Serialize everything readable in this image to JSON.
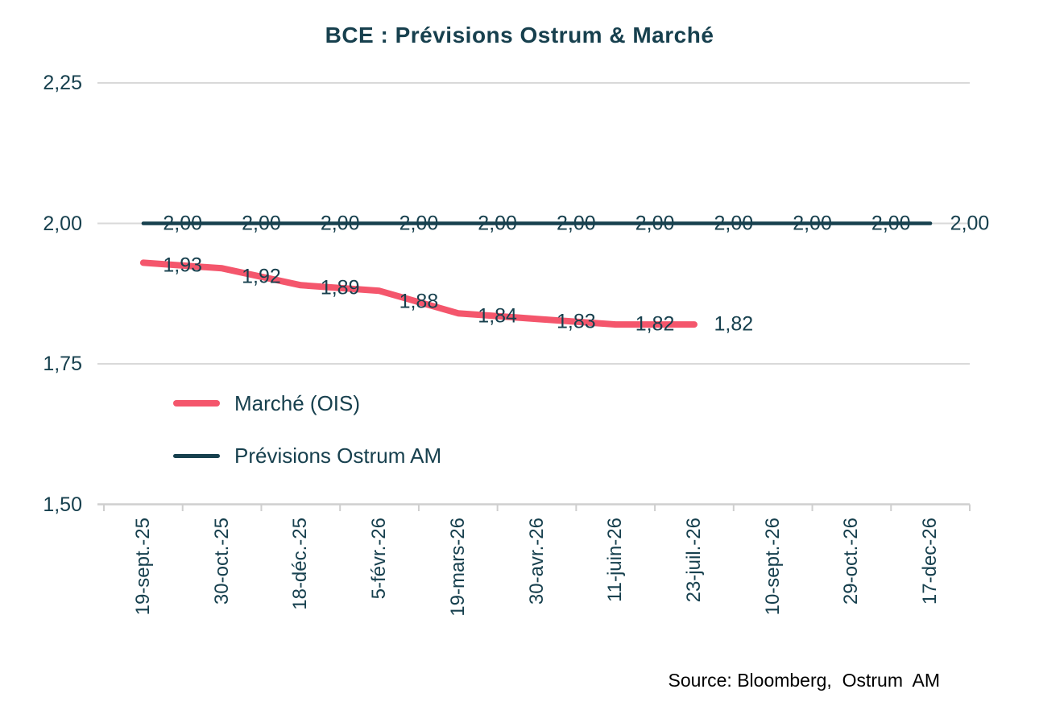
{
  "title": "BCE : Prévisions Ostrum & Marché",
  "colors": {
    "accent_teal": "#17404e",
    "market_pink": "#f4566c",
    "grid": "#d9d9d9",
    "axis": "#cfcfcf",
    "source_text": "#000000",
    "background": "#ffffff"
  },
  "chart_data": {
    "type": "line",
    "title": "BCE : Prévisions Ostrum & Marché",
    "categories": [
      "19-sept.-25",
      "30-oct.-25",
      "18-déc.-25",
      "5-févr.-26",
      "19-mars-26",
      "30-avr.-26",
      "11-juin-26",
      "23-juil.-26",
      "10-sept.-26",
      "29-oct.-26",
      "17-dec-26"
    ],
    "series": [
      {
        "name": "Marché (OIS)",
        "color": "#f4566c",
        "stroke_width": 8,
        "swatch_height": 8,
        "values": [
          1.93,
          1.92,
          1.89,
          1.88,
          1.84,
          1.83,
          1.82,
          1.82,
          null,
          null,
          null
        ],
        "point_labels": [
          "1,93",
          "1,92",
          "1,89",
          "1,88",
          "1,84",
          "1,83",
          "1,82",
          "1,82"
        ]
      },
      {
        "name": "Prévisions Ostrum AM",
        "color": "#17404e",
        "stroke_width": 4.5,
        "swatch_height": 5,
        "values": [
          2.0,
          2.0,
          2.0,
          2.0,
          2.0,
          2.0,
          2.0,
          2.0,
          2.0,
          2.0,
          2.0
        ],
        "point_labels": [
          "2,00",
          "2,00",
          "2,00",
          "2,00",
          "2,00",
          "2,00",
          "2,00",
          "2,00",
          "2,00",
          "2,00",
          "2,00"
        ]
      }
    ],
    "yticks": [
      {
        "value": 2.25,
        "label": "2,25"
      },
      {
        "value": 2.0,
        "label": "2,00"
      },
      {
        "value": 1.75,
        "label": "1,75"
      },
      {
        "value": 1.5,
        "label": "1,50"
      }
    ],
    "ylim": [
      1.5,
      2.25
    ],
    "grid": true,
    "legend_position": "inside-left-lower",
    "source": "Source: Bloomberg,  Ostrum  AM"
  }
}
